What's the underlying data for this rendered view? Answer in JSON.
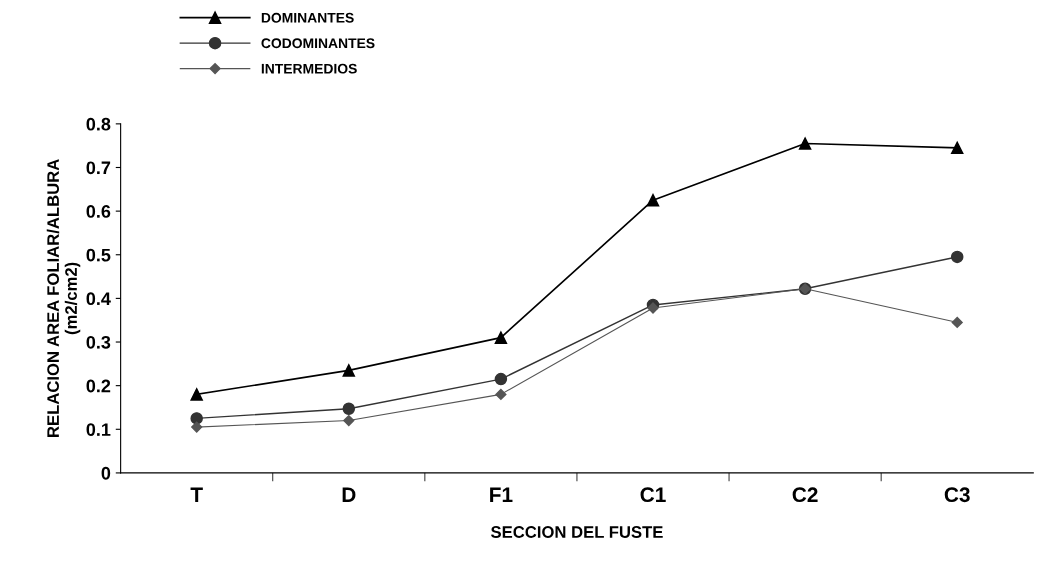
{
  "chart_data": {
    "type": "line",
    "xlabel": "SECCION DEL FUSTE",
    "ylabel": "RELACION AREA FOLIAR/ALBURA\n(m2/cm2)",
    "categories": [
      "T",
      "D",
      "F1",
      "C1",
      "C2",
      "C3"
    ],
    "series": [
      {
        "name": "DOMINANTES",
        "color": "#000000",
        "marker": "triangle",
        "values": [
          0.18,
          0.235,
          0.31,
          0.625,
          0.755,
          0.745
        ]
      },
      {
        "name": "CODOMINANTES",
        "color": "#333333",
        "marker": "circle",
        "values": [
          0.125,
          0.147,
          0.215,
          0.385,
          0.422,
          0.495
        ]
      },
      {
        "name": "INTERMEDIOS",
        "color": "#555555",
        "marker": "diamond",
        "values": [
          0.105,
          0.12,
          0.18,
          0.378,
          0.422,
          0.345
        ]
      }
    ],
    "ylim": [
      0,
      0.8
    ],
    "yticks": [
      0,
      0.1,
      0.2,
      0.3,
      0.4,
      0.5,
      0.6,
      0.7,
      0.8
    ],
    "grid": false,
    "legend": "top left"
  }
}
